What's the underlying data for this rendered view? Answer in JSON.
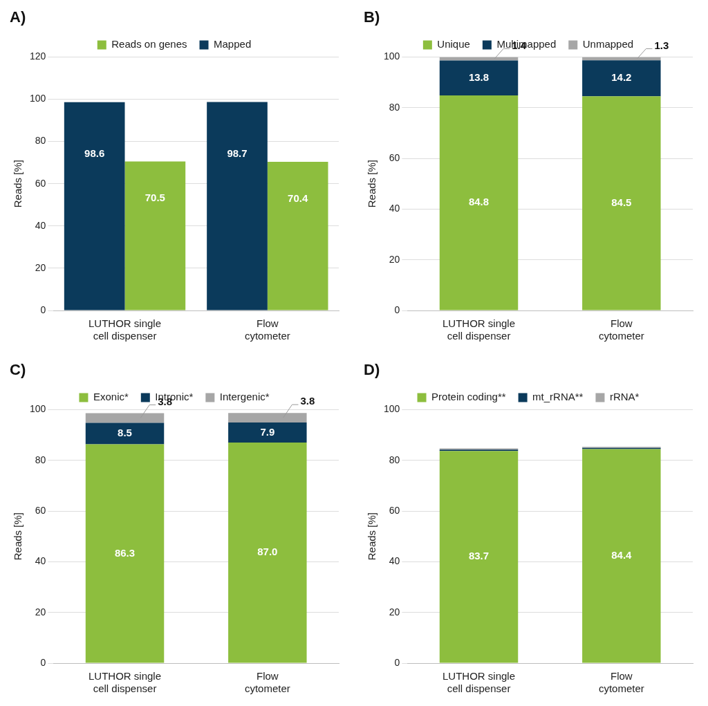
{
  "chart_data": [
    {
      "type": "bar",
      "title": "A)",
      "ylabel": "Reads [%]",
      "categories": [
        "LUTHOR single cell dispenser",
        "Flow cytometer"
      ],
      "series": [
        {
          "name": "Mapped",
          "color": "#0b3a5b",
          "values": [
            98.6,
            98.7
          ]
        },
        {
          "name": "Reads on genes",
          "color": "#8dbe3e",
          "values": [
            70.5,
            70.4
          ]
        }
      ],
      "ylim": [
        0,
        120
      ],
      "yticks": [
        0,
        20,
        40,
        60,
        80,
        100,
        120
      ],
      "grid": true,
      "legend": "top",
      "stacked": false,
      "data_labels": true
    },
    {
      "type": "bar",
      "title": "B)",
      "ylabel": "Reads [%]",
      "categories": [
        "LUTHOR single cell dispenser",
        "Flow cytometer"
      ],
      "series": [
        {
          "name": "Unique",
          "color": "#8dbe3e",
          "values": [
            84.8,
            84.5
          ]
        },
        {
          "name": "Multimapped",
          "color": "#0b3a5b",
          "values": [
            13.8,
            14.2
          ]
        },
        {
          "name": "Unmapped",
          "color": "#a6a6a6",
          "values": [
            1.4,
            1.3
          ]
        }
      ],
      "ylim": [
        0,
        100
      ],
      "yticks": [
        0,
        20,
        40,
        60,
        80,
        100
      ],
      "grid": true,
      "legend": "top",
      "stacked": true,
      "data_labels": true
    },
    {
      "type": "bar",
      "title": "C)",
      "ylabel": "Reads [%]",
      "categories": [
        "LUTHOR single cell dispenser",
        "Flow cytometer"
      ],
      "series": [
        {
          "name": "Exonic*",
          "color": "#8dbe3e",
          "values": [
            86.3,
            87.0
          ],
          "value_labels": [
            "86.3",
            "87.0"
          ]
        },
        {
          "name": "Intronic*",
          "color": "#0b3a5b",
          "values": [
            8.5,
            7.9
          ]
        },
        {
          "name": "Intergenic*",
          "color": "#a6a6a6",
          "values": [
            3.8,
            3.8
          ]
        }
      ],
      "ylim": [
        0,
        100
      ],
      "yticks": [
        0,
        20,
        40,
        60,
        80,
        100
      ],
      "grid": true,
      "legend": "top",
      "stacked": true,
      "data_labels": true
    },
    {
      "type": "bar",
      "title": "D)",
      "ylabel": "Reads [%]",
      "categories": [
        "LUTHOR single cell dispenser",
        "Flow cytometer"
      ],
      "series": [
        {
          "name": "Protein coding**",
          "color": "#8dbe3e",
          "values": [
            83.7,
            84.4
          ]
        },
        {
          "name": "mt_rRNA**",
          "color": "#0b3a5b",
          "values": [
            0.5,
            0.5
          ],
          "data_labels": false
        },
        {
          "name": "rRNA*",
          "color": "#a6a6a6",
          "values": [
            0.5,
            0.4
          ],
          "data_labels": false
        }
      ],
      "ylim": [
        0,
        100
      ],
      "yticks": [
        0,
        20,
        40,
        60,
        80,
        100
      ],
      "grid": true,
      "legend": "top",
      "stacked": true,
      "data_labels": true
    }
  ]
}
